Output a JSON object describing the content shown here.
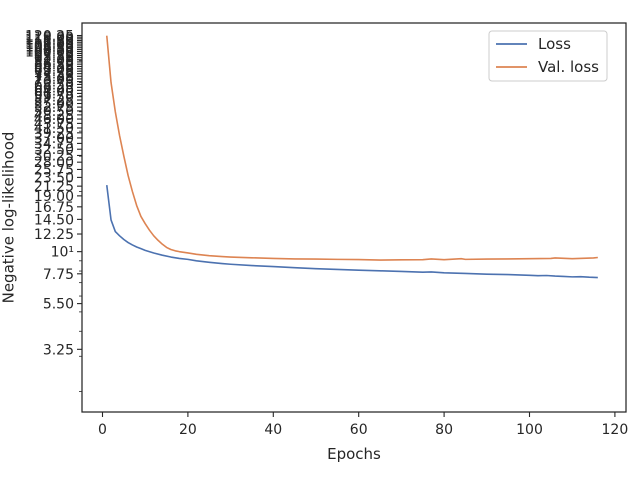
{
  "chart_data": {
    "type": "line",
    "xlabel": "Epochs",
    "ylabel": "Negative log-likelihood",
    "y_scale": "log",
    "xlim": [
      -4.8,
      122.6
    ],
    "ylim": [
      1.58,
      138.9
    ],
    "grid": false,
    "legend_position": "top-right",
    "x_ticks": [
      {
        "value": 0,
        "label": "0"
      },
      {
        "value": 20,
        "label": "20"
      },
      {
        "value": 40,
        "label": "40"
      },
      {
        "value": 60,
        "label": "60"
      },
      {
        "value": 80,
        "label": "80"
      },
      {
        "value": 100,
        "label": "100"
      },
      {
        "value": 120,
        "label": "120"
      }
    ],
    "y_ticks_labeled": [
      {
        "value": 3.25,
        "label": "3.25"
      },
      {
        "value": 5.5,
        "label": "5.50"
      },
      {
        "value": 7.75,
        "label": "7.75"
      },
      {
        "value": 10,
        "label": "10¹"
      },
      {
        "value": 12.25,
        "label": "12.25"
      },
      {
        "value": 14.5,
        "label": "14.50"
      },
      {
        "value": 16.75,
        "label": "16.75"
      },
      {
        "value": 19.0,
        "label": "19.00"
      },
      {
        "value": 21.25,
        "label": "21.25"
      },
      {
        "value": 23.5,
        "label": "23.50"
      },
      {
        "value": 25.75,
        "label": "25.75"
      },
      {
        "value": 28.0,
        "label": "28.00"
      },
      {
        "value": 30.25,
        "label": "30.25"
      },
      {
        "value": 32.5,
        "label": "32.50"
      },
      {
        "value": 34.75,
        "label": "34.75"
      },
      {
        "value": 37.0,
        "label": "37.00"
      },
      {
        "value": 39.25,
        "label": "39.25"
      },
      {
        "value": 41.5,
        "label": "41.50"
      },
      {
        "value": 43.75,
        "label": "43.75"
      },
      {
        "value": 46.0,
        "label": "46.00"
      },
      {
        "value": 48.25,
        "label": "48.25"
      },
      {
        "value": 50.5,
        "label": "50.50"
      },
      {
        "value": 52.75,
        "label": "52.75"
      },
      {
        "value": 55.0,
        "label": "55.00"
      },
      {
        "value": 57.25,
        "label": "57.25"
      },
      {
        "value": 59.5,
        "label": "59.50"
      },
      {
        "value": 61.75,
        "label": "61.75"
      },
      {
        "value": 64.0,
        "label": "64.00"
      },
      {
        "value": 66.25,
        "label": "66.25"
      },
      {
        "value": 68.5,
        "label": "68.50"
      },
      {
        "value": 70.75,
        "label": "70.75"
      },
      {
        "value": 73.0,
        "label": "73.00"
      },
      {
        "value": 75.25,
        "label": "75.25"
      },
      {
        "value": 77.5,
        "label": "77.50"
      },
      {
        "value": 79.75,
        "label": "79.75"
      },
      {
        "value": 82.0,
        "label": "82.00"
      },
      {
        "value": 84.25,
        "label": "84.25"
      },
      {
        "value": 86.5,
        "label": "86.50"
      },
      {
        "value": 88.75,
        "label": "88.75"
      },
      {
        "value": 91.0,
        "label": "91.00"
      },
      {
        "value": 93.25,
        "label": "93.25"
      },
      {
        "value": 95.5,
        "label": "95.50"
      },
      {
        "value": 97.75,
        "label": "97.75"
      },
      {
        "value": 100.0,
        "label": "100.00"
      },
      {
        "value": 102.25,
        "label": "102.25"
      },
      {
        "value": 104.5,
        "label": "104.50"
      },
      {
        "value": 106.75,
        "label": "106.75"
      },
      {
        "value": 109.0,
        "label": "109.00"
      },
      {
        "value": 111.25,
        "label": "111.25"
      },
      {
        "value": 113.5,
        "label": "113.50"
      },
      {
        "value": 115.75,
        "label": "115.75"
      },
      {
        "value": 118.0,
        "label": "118.00"
      },
      {
        "value": 120.25,
        "label": "120.25"
      }
    ],
    "y_minor_ticks": [
      2,
      3,
      4,
      5,
      6,
      7,
      8,
      9,
      20,
      30,
      40,
      50,
      60,
      70,
      80,
      90
    ],
    "series": [
      {
        "name": "Loss",
        "color": "#4c72b0",
        "x": [
          1,
          2,
          3,
          4,
          5,
          6,
          7,
          8,
          9,
          10,
          12,
          14,
          16,
          18,
          20,
          22,
          25,
          28,
          30,
          35,
          40,
          45,
          50,
          55,
          60,
          65,
          70,
          75,
          77,
          80,
          85,
          90,
          95,
          100,
          102,
          104,
          106,
          108,
          110,
          112,
          114,
          116
        ],
        "y": [
          21.5,
          14.4,
          12.6,
          12.0,
          11.5,
          11.1,
          10.8,
          10.55,
          10.35,
          10.15,
          9.85,
          9.6,
          9.4,
          9.25,
          9.15,
          9.0,
          8.85,
          8.72,
          8.65,
          8.52,
          8.42,
          8.32,
          8.22,
          8.15,
          8.08,
          8.02,
          7.96,
          7.9,
          7.92,
          7.84,
          7.78,
          7.72,
          7.68,
          7.62,
          7.58,
          7.6,
          7.55,
          7.52,
          7.48,
          7.5,
          7.45,
          7.42
        ]
      },
      {
        "name": "Val. loss",
        "color": "#dd8452",
        "x": [
          1,
          2,
          3,
          4,
          5,
          6,
          7,
          8,
          9,
          10,
          11,
          12,
          13,
          14,
          15,
          16,
          17,
          18,
          20,
          22,
          25,
          28,
          30,
          35,
          40,
          45,
          50,
          55,
          60,
          65,
          70,
          75,
          77,
          80,
          84,
          85,
          90,
          95,
          100,
          105,
          106,
          110,
          115,
          116
        ],
        "y": [
          120,
          70,
          50,
          38,
          30,
          24,
          20,
          17,
          15,
          13.8,
          12.8,
          12.0,
          11.4,
          10.9,
          10.5,
          10.25,
          10.1,
          10.0,
          9.85,
          9.7,
          9.55,
          9.45,
          9.4,
          9.32,
          9.25,
          9.2,
          9.18,
          9.15,
          9.13,
          9.08,
          9.1,
          9.12,
          9.2,
          9.12,
          9.22,
          9.15,
          9.18,
          9.2,
          9.22,
          9.25,
          9.3,
          9.22,
          9.3,
          9.35
        ]
      }
    ]
  }
}
